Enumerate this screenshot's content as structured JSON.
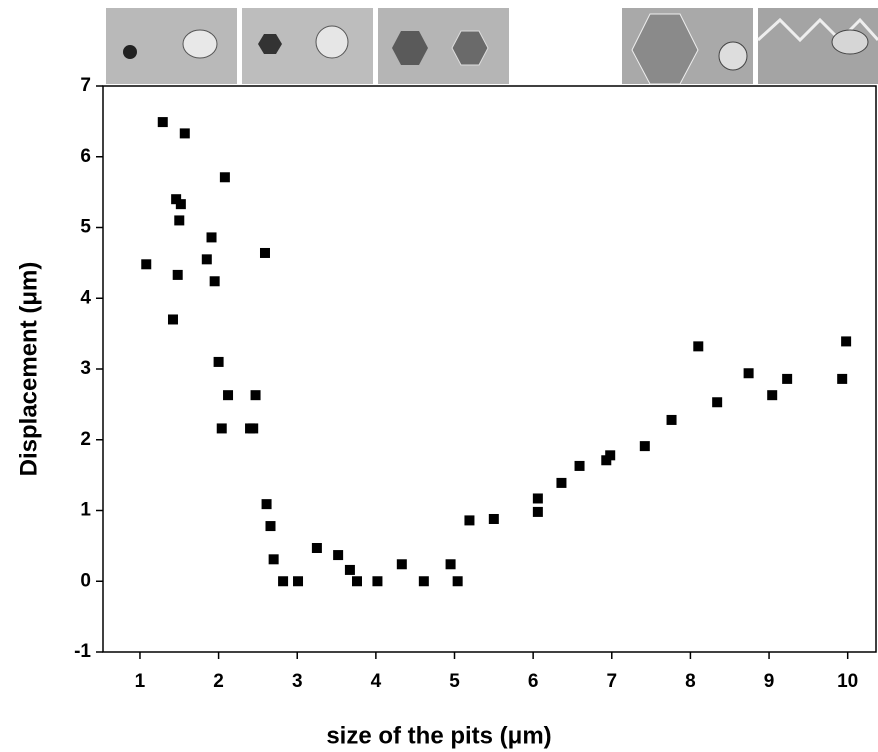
{
  "chart_data": {
    "type": "scatter",
    "x_label": "size of the pits (μm)",
    "y_label": "Displacement (μm)",
    "color": "#000000",
    "xlim": [
      0.53,
      10.36
    ],
    "ylim": [
      -1,
      7
    ],
    "xticks": [
      1,
      2,
      3,
      4,
      5,
      6,
      7,
      8,
      9,
      10
    ],
    "yticks": [
      -1,
      0,
      1,
      2,
      3,
      4,
      5,
      6,
      7
    ],
    "x": [
      1.08,
      1.29,
      1.57,
      1.46,
      1.52,
      1.5,
      1.48,
      1.42,
      2.08,
      1.91,
      1.85,
      1.95,
      2.59,
      2.0,
      2.12,
      2.47,
      2.04,
      2.4,
      2.44,
      2.61,
      2.66,
      2.7,
      2.82,
      3.01,
      3.25,
      3.52,
      3.67,
      3.76,
      4.02,
      4.33,
      4.61,
      4.95,
      5.04,
      5.19,
      5.5,
      6.06,
      6.06,
      6.36,
      6.59,
      6.93,
      6.98,
      7.42,
      7.76,
      8.1,
      8.34,
      8.74,
      9.04,
      9.23,
      9.93,
      9.98
    ],
    "values": [
      4.48,
      6.49,
      6.33,
      5.4,
      5.33,
      5.1,
      4.33,
      3.7,
      5.71,
      4.86,
      4.55,
      4.24,
      4.64,
      3.1,
      2.63,
      2.63,
      2.16,
      2.16,
      2.16,
      1.09,
      0.78,
      0.31,
      0,
      0,
      0.47,
      0.37,
      0.16,
      0,
      0,
      0.24,
      0,
      0.24,
      0,
      0.86,
      0.88,
      1.17,
      0.98,
      1.39,
      1.63,
      1.71,
      1.78,
      1.91,
      2.28,
      3.32,
      2.53,
      2.94,
      2.63,
      2.86,
      2.86,
      3.39
    ]
  }
}
